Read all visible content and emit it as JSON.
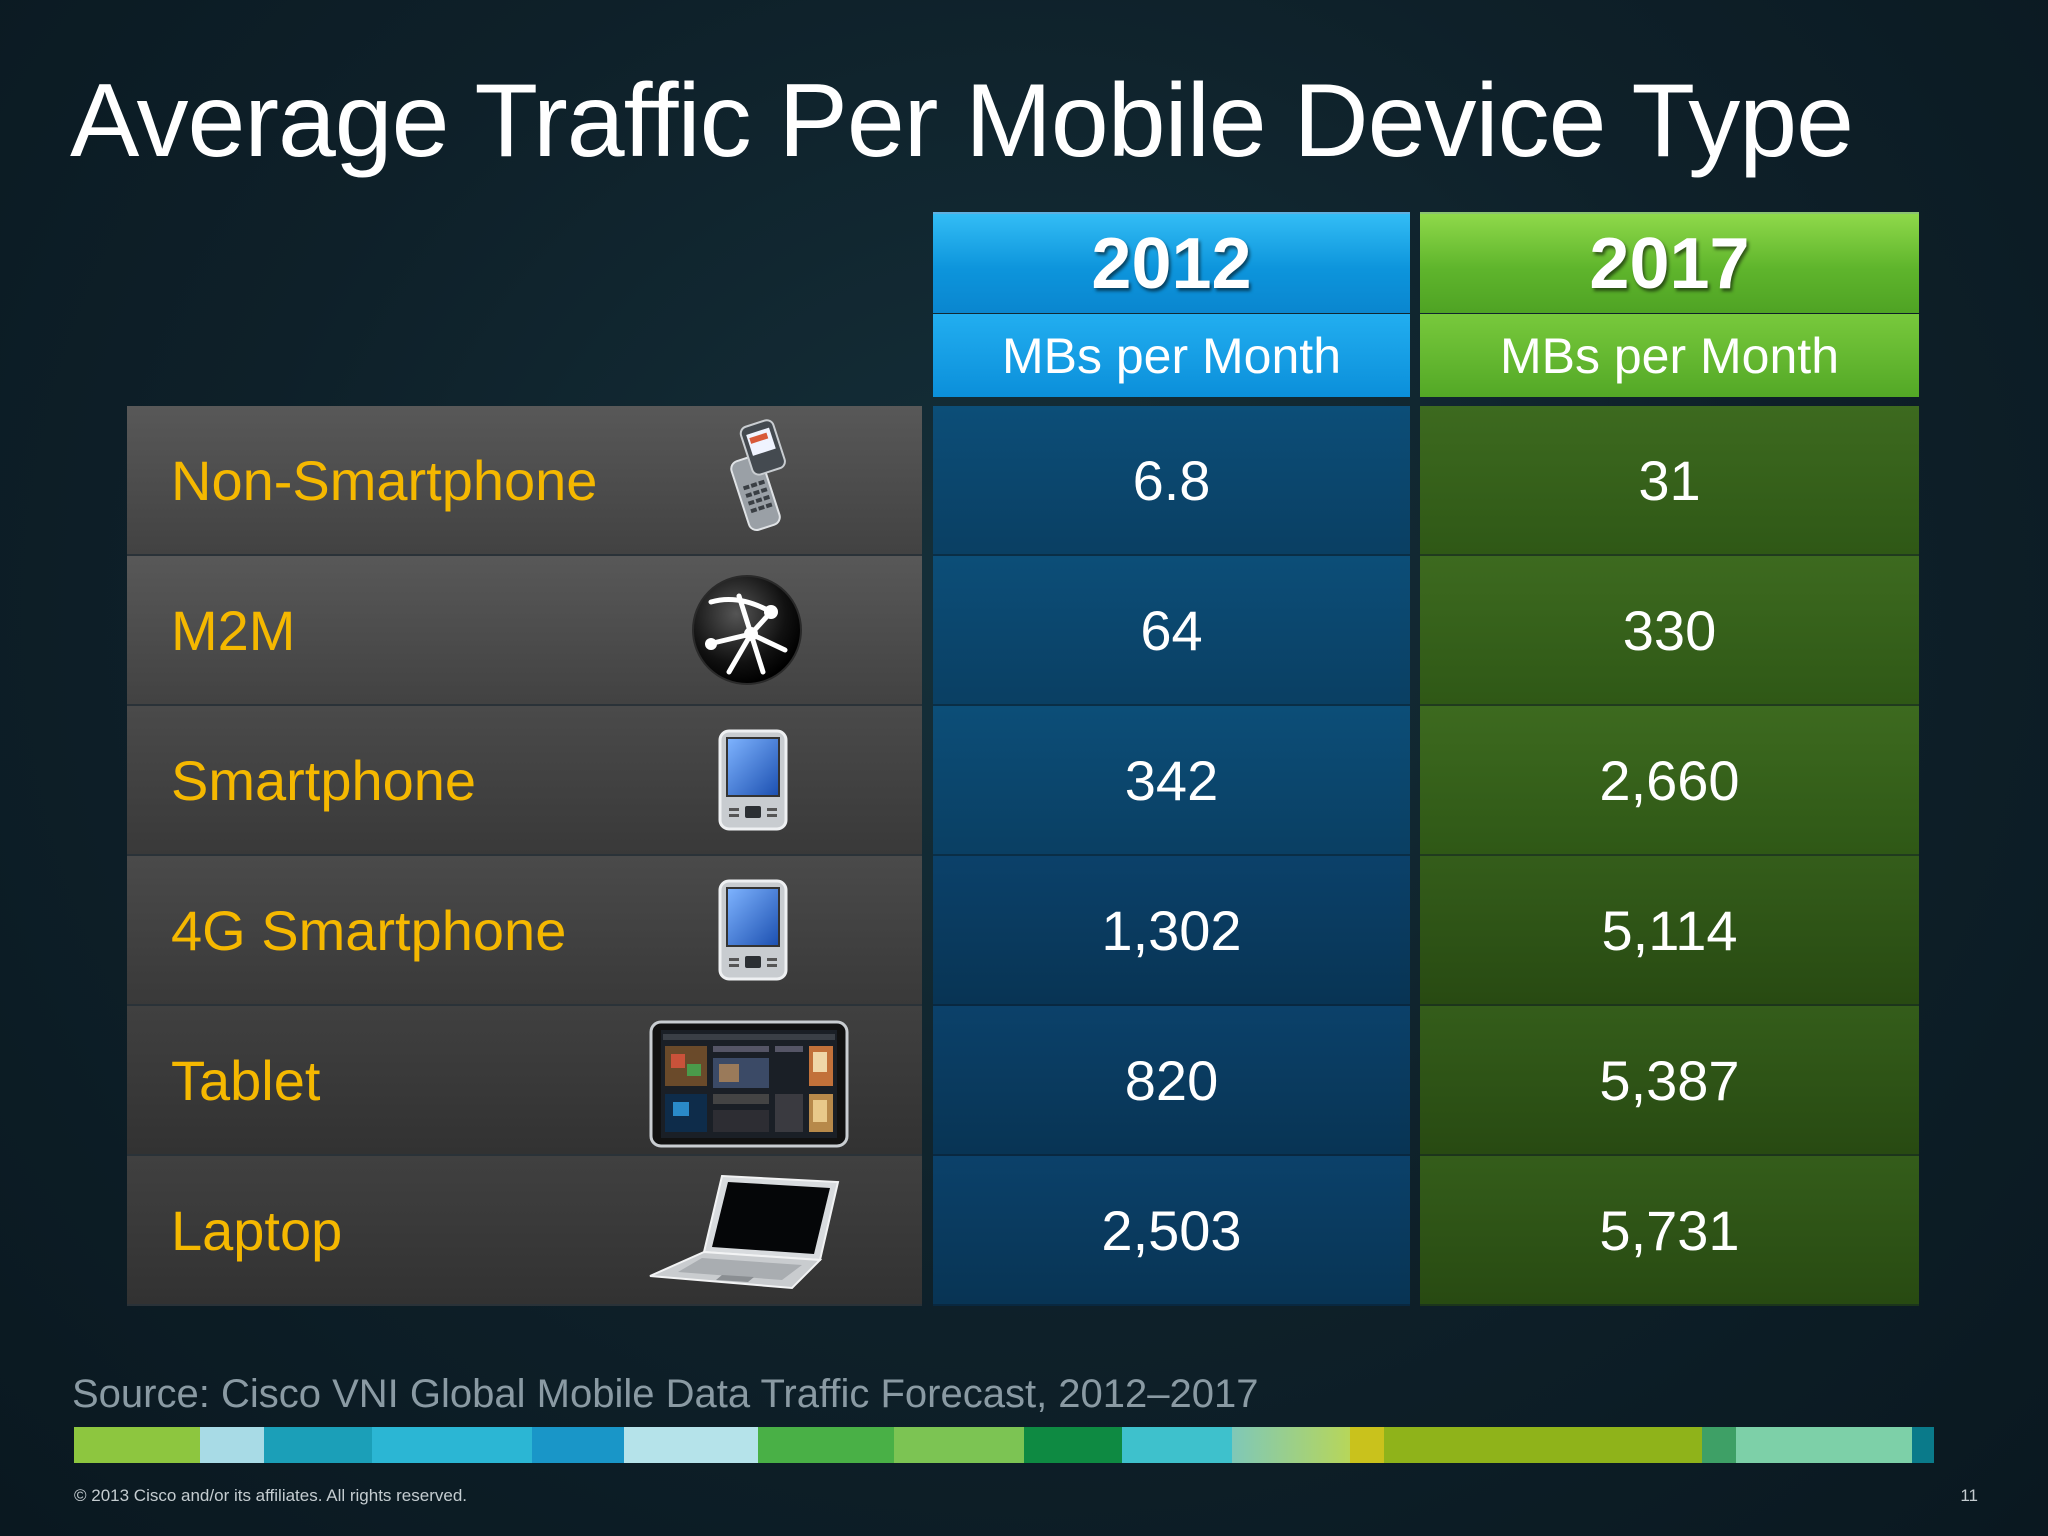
{
  "slide": {
    "title": "Average Traffic Per Mobile Device Type",
    "source": "Source: Cisco VNI Global Mobile Data Traffic Forecast, 2012–2017",
    "copyright": "© 2013 Cisco and/or its affiliates. All rights reserved.",
    "page_number": "11"
  },
  "chart_data": {
    "type": "table",
    "title": "Average Traffic Per Mobile Device Type",
    "columns": [
      {
        "year": "2012",
        "unit": "MBs per Month",
        "color": "#0d95dc"
      },
      {
        "year": "2017",
        "unit": "MBs per Month",
        "color": "#5fb52c"
      }
    ],
    "rows": [
      {
        "device": "Non-Smartphone",
        "icon": "flip-phone-icon",
        "values": [
          "6.8",
          "31"
        ]
      },
      {
        "device": "M2M",
        "icon": "network-globe-icon",
        "values": [
          "64",
          "330"
        ]
      },
      {
        "device": "Smartphone",
        "icon": "smartphone-icon",
        "values": [
          "342",
          "2,660"
        ]
      },
      {
        "device": "4G Smartphone",
        "icon": "smartphone-icon",
        "values": [
          "1,302",
          "5,114"
        ]
      },
      {
        "device": "Tablet",
        "icon": "tablet-icon",
        "values": [
          "820",
          "5,387"
        ]
      },
      {
        "device": "Laptop",
        "icon": "laptop-icon",
        "values": [
          "2,503",
          "5,731"
        ]
      }
    ]
  },
  "colors": {
    "label_text": "#f5b800",
    "col_2012": "#0d95dc",
    "col_2017": "#5fb52c",
    "stripe": [
      "#8dc63f",
      "#a8dbe6",
      "#1b9fb8",
      "#2bb6d4",
      "#1996c8",
      "#b5e3ea",
      "#49b046",
      "#7cc453",
      "#0e8a42",
      "#3ec1cc",
      "#b7d65a",
      "#c9c21c",
      "#8fb31a",
      "#6fb43f",
      "#3ea066",
      "#7dd0a8",
      "#0a7a8a"
    ]
  }
}
